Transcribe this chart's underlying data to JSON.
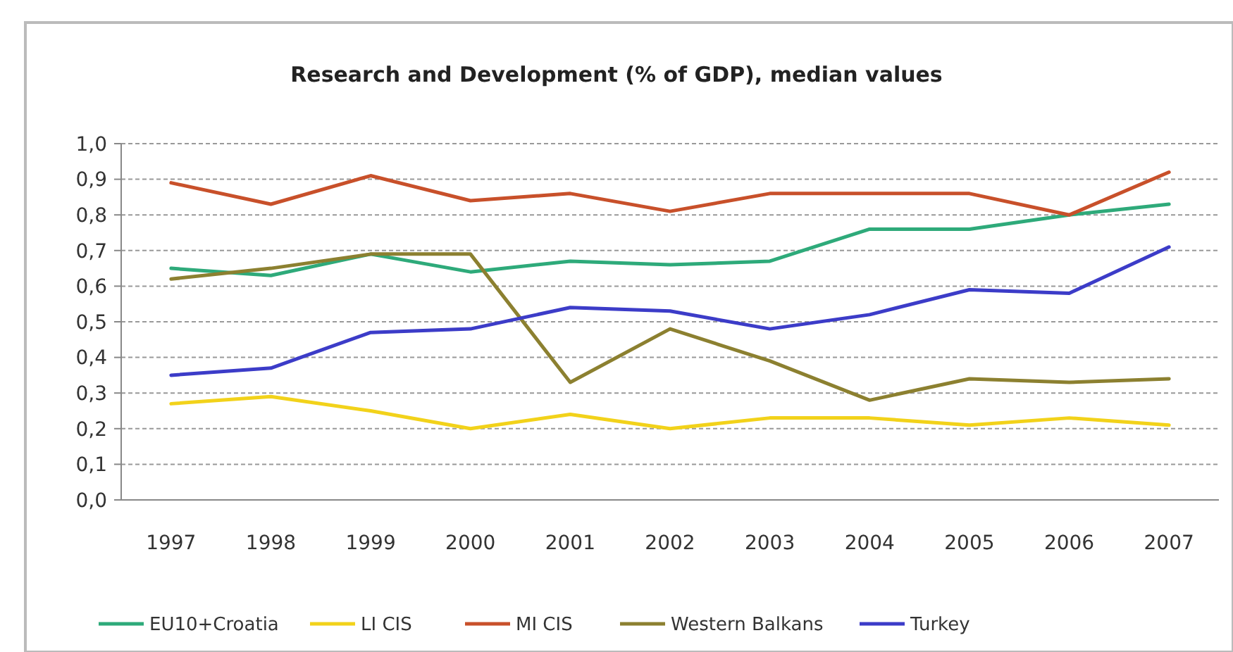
{
  "chart_data": {
    "type": "line",
    "title": "Research and Development (% of GDP), median values",
    "categories": [
      "1997",
      "1998",
      "1999",
      "2000",
      "2001",
      "2002",
      "2003",
      "2004",
      "2005",
      "2006",
      "2007"
    ],
    "series": [
      {
        "name": "EU10+Croatia",
        "color": "#2eaa7a",
        "values": [
          0.65,
          0.63,
          0.69,
          0.64,
          0.67,
          0.66,
          0.67,
          0.76,
          0.76,
          0.8,
          0.83
        ]
      },
      {
        "name": "LI CIS",
        "color": "#f2d21a",
        "values": [
          0.27,
          0.29,
          0.25,
          0.2,
          0.24,
          0.2,
          0.23,
          0.23,
          0.21,
          0.23,
          0.21
        ]
      },
      {
        "name": "MI CIS",
        "color": "#c8502a",
        "values": [
          0.89,
          0.83,
          0.91,
          0.84,
          0.86,
          0.81,
          0.86,
          0.86,
          0.86,
          0.8,
          0.92
        ]
      },
      {
        "name": "Western Balkans",
        "color": "#8c8030",
        "values": [
          0.62,
          0.65,
          0.69,
          0.69,
          0.33,
          0.48,
          0.39,
          0.28,
          0.34,
          0.33,
          0.34
        ]
      },
      {
        "name": "Turkey",
        "color": "#3c3cc8",
        "values": [
          0.35,
          0.37,
          0.47,
          0.48,
          0.54,
          0.53,
          0.48,
          0.52,
          0.59,
          0.58,
          0.71
        ]
      }
    ],
    "ylim": [
      0,
      1
    ],
    "yticks": [
      {
        "value": 0,
        "label": "0,0"
      },
      {
        "value": 0.1,
        "label": "0,1"
      },
      {
        "value": 0.2,
        "label": "0,2"
      },
      {
        "value": 0.3,
        "label": "0,3"
      },
      {
        "value": 0.4,
        "label": "0,4"
      },
      {
        "value": 0.5,
        "label": "0,5"
      },
      {
        "value": 0.6,
        "label": "0,6"
      },
      {
        "value": 0.7,
        "label": "0,7"
      },
      {
        "value": 0.8,
        "label": "0,8"
      },
      {
        "value": 0.9,
        "label": "0,9"
      },
      {
        "value": 1,
        "label": "1,0"
      }
    ],
    "grid": "y",
    "legend": "bottom",
    "marker": "none",
    "line_style": "solid"
  }
}
